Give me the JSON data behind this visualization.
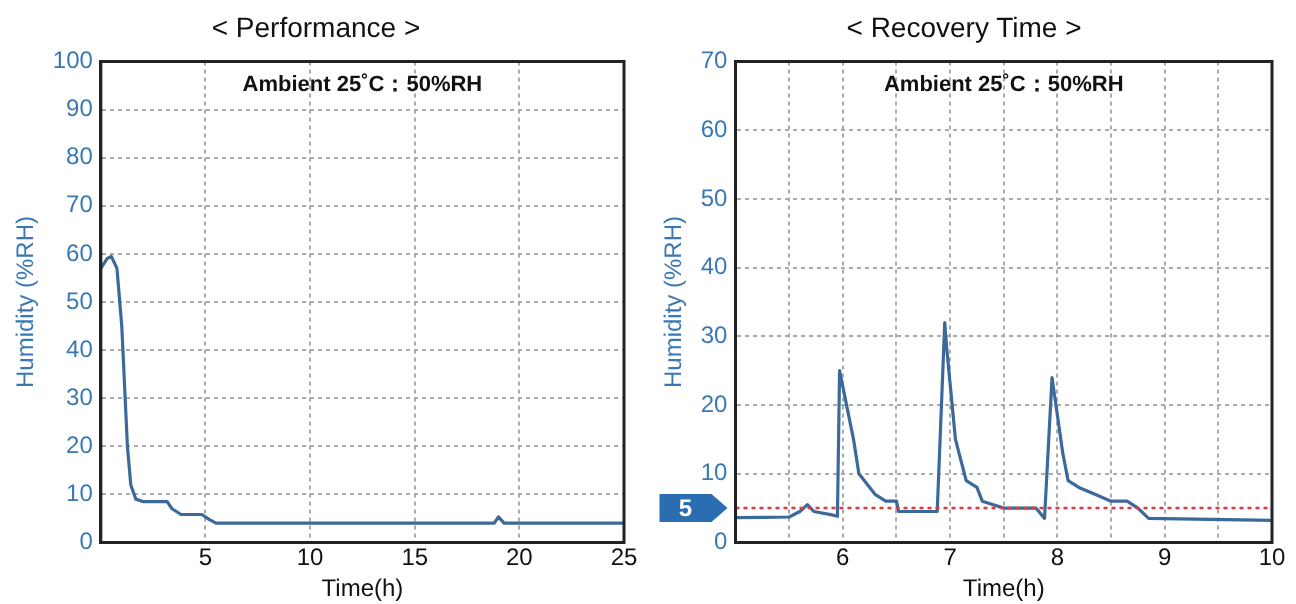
{
  "chart_data": [
    {
      "type": "line",
      "title": "< Performance >",
      "xlabel": "Time(h)",
      "ylabel": "Humidity (%RH)",
      "annotations": [
        "Ambient 25˚C：50%RH"
      ],
      "x": [
        0,
        0.3,
        0.5,
        0.77,
        1.0,
        1.27,
        1.43,
        1.67,
        2.0,
        3.17,
        3.4,
        3.83,
        4.83,
        5.17,
        5.5,
        18.8,
        19.0,
        19.27,
        25
      ],
      "series": [
        {
          "color": "#3b6a9a",
          "values": [
            57,
            59,
            59.5,
            57,
            45,
            20,
            12,
            9,
            8.5,
            8.5,
            7,
            5.8,
            5.8,
            4.8,
            4,
            4,
            5.3,
            4,
            4
          ]
        }
      ],
      "xlim": [
        0,
        25
      ],
      "xticks": [
        5,
        10,
        15,
        20,
        25
      ],
      "ylim": [
        0,
        100
      ],
      "yticks": [
        0,
        10,
        20,
        30,
        40,
        50,
        60,
        70,
        80,
        90,
        100
      ],
      "grid": true,
      "legend": false,
      "marker": "none",
      "line_style": "solid"
    },
    {
      "type": "line",
      "title": "< Recovery Time >",
      "xlabel": "Time(h)",
      "ylabel": "Humidity (%RH)",
      "annotations": [
        "Ambient 25˚C：50%RH"
      ],
      "x": [
        5,
        5.5,
        5.6,
        5.67,
        5.73,
        5.9,
        5.95,
        5.97,
        6.1,
        6.15,
        6.2,
        6.3,
        6.4,
        6.5,
        6.52,
        6.88,
        6.95,
        6.97,
        7.05,
        7.15,
        7.25,
        7.3,
        7.5,
        7.8,
        7.88,
        7.95,
        8.05,
        8.1,
        8.2,
        8.35,
        8.5,
        8.65,
        8.75,
        8.85,
        10
      ],
      "series": [
        {
          "color": "#3b6a9a",
          "values": [
            3.6,
            3.7,
            4.5,
            5.5,
            4.5,
            4,
            3.8,
            25,
            15,
            10,
            9,
            7,
            6,
            6,
            4.5,
            4.5,
            32,
            28,
            15,
            9,
            8,
            6,
            5,
            5,
            3.5,
            24,
            13,
            9,
            8,
            7,
            6,
            6,
            5,
            3.5,
            3.2
          ]
        }
      ],
      "ref_lines": [
        {
          "axis": "y",
          "value": 5,
          "label": "5",
          "color": "#e0393e",
          "line_style": "dotted"
        }
      ],
      "xlim": [
        5,
        10
      ],
      "xticks": [
        {
          "value": 5.5,
          "label": null
        },
        6,
        {
          "value": 6.5,
          "label": null
        },
        7,
        {
          "value": 7.5,
          "label": null
        },
        8,
        {
          "value": 8.5,
          "label": null
        },
        9,
        {
          "value": 9.5,
          "label": null
        },
        10
      ],
      "ylim": [
        0,
        70
      ],
      "yticks": [
        0,
        10,
        20,
        30,
        40,
        50,
        60,
        70
      ],
      "grid": true,
      "legend": false,
      "marker": "none",
      "line_style": "solid"
    }
  ]
}
